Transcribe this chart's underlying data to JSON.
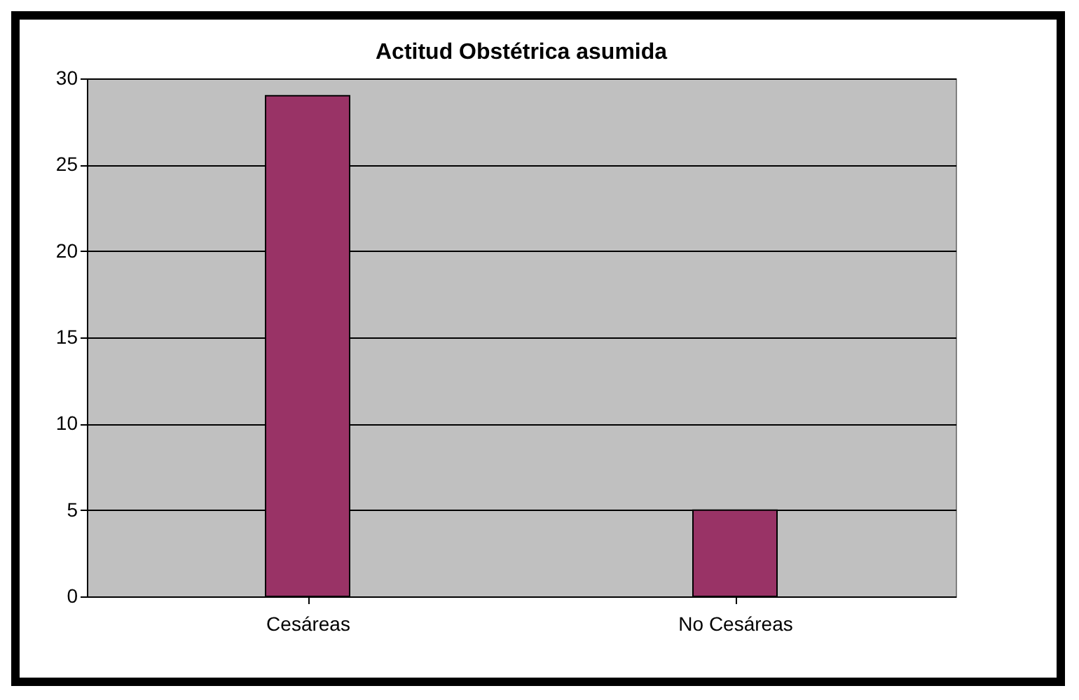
{
  "chart_data": {
    "type": "bar",
    "title": "Actitud Obstétrica asumida",
    "categories": [
      "Cesáreas",
      "No Cesáreas"
    ],
    "values": [
      29,
      5
    ],
    "color": "#993366",
    "ylim": [
      0,
      30
    ],
    "yticks": [
      0,
      5,
      10,
      15,
      20,
      25,
      30
    ],
    "grid": "y"
  }
}
